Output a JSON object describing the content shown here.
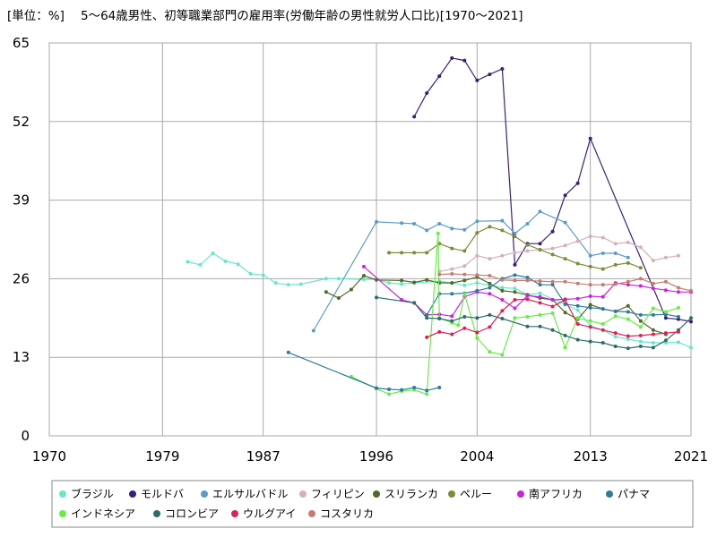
{
  "chart_data": {
    "type": "line",
    "title": "5～64歳男性、初等職業部門の雇用率(労働年齢の男性就労人口比)[1970～2021]",
    "unit_label": "[単位：%]",
    "xlim": [
      1970,
      2021
    ],
    "ylim": [
      0,
      65
    ],
    "x_ticks": [
      1970,
      1979,
      1987,
      1996,
      2004,
      2013,
      2021
    ],
    "y_ticks": [
      0,
      13,
      26,
      39,
      52,
      65
    ],
    "grid": true,
    "legend_position": "bottom",
    "series": [
      {
        "name": "ブラジル",
        "color": "#66e8c8",
        "points": [
          [
            1981,
            28.8
          ],
          [
            1982,
            28.3
          ],
          [
            1983,
            30.2
          ],
          [
            1984,
            28.9
          ],
          [
            1985,
            28.4
          ],
          [
            1986,
            26.8
          ],
          [
            1987,
            26.6
          ],
          [
            1988,
            25.3
          ],
          [
            1989,
            25.0
          ],
          [
            1990,
            25.1
          ],
          [
            1992,
            26.0
          ],
          [
            1993,
            26.0
          ],
          [
            1995,
            25.9
          ],
          [
            1996,
            25.9
          ],
          [
            1997,
            25.3
          ],
          [
            1998,
            25.1
          ],
          [
            1999,
            25.3
          ],
          [
            2001,
            25.6
          ],
          [
            2002,
            25.3
          ],
          [
            2003,
            24.9
          ],
          [
            2004,
            25.3
          ],
          [
            2005,
            24.9
          ],
          [
            2006,
            24.5
          ],
          [
            2007,
            24.4
          ],
          [
            2008,
            23.4
          ],
          [
            2009,
            23.6
          ],
          [
            2011,
            21.7
          ],
          [
            2012,
            20.8
          ],
          [
            2013,
            18.2
          ],
          [
            2014,
            17.5
          ],
          [
            2015,
            16.4
          ],
          [
            2016,
            16.0
          ],
          [
            2017,
            15.6
          ],
          [
            2018,
            15.4
          ],
          [
            2019,
            15.4
          ],
          [
            2020,
            15.5
          ],
          [
            2021,
            14.6
          ]
        ]
      },
      {
        "name": "モルドバ",
        "color": "#3a1f7a",
        "points": [
          [
            1999,
            52.8
          ],
          [
            2000,
            56.7
          ],
          [
            2001,
            59.5
          ],
          [
            2002,
            62.5
          ],
          [
            2003,
            62.1
          ],
          [
            2004,
            58.8
          ],
          [
            2005,
            59.8
          ],
          [
            2006,
            60.7
          ],
          [
            2007,
            28.3
          ],
          [
            2008,
            31.8
          ],
          [
            2009,
            31.8
          ],
          [
            2010,
            33.8
          ],
          [
            2011,
            39.8
          ],
          [
            2012,
            41.8
          ],
          [
            2013,
            49.2
          ],
          [
            2019,
            19.5
          ],
          [
            2020,
            19.3
          ],
          [
            2021,
            18.9
          ]
        ]
      },
      {
        "name": "エルサルバドル",
        "color": "#5b9bc8",
        "points": [
          [
            1991,
            17.4
          ],
          [
            1996,
            35.4
          ],
          [
            1998,
            35.2
          ],
          [
            1999,
            35.1
          ],
          [
            2000,
            34.0
          ],
          [
            2001,
            35.1
          ],
          [
            2002,
            34.3
          ],
          [
            2003,
            34.1
          ],
          [
            2004,
            35.5
          ],
          [
            2006,
            35.6
          ],
          [
            2007,
            33.5
          ],
          [
            2008,
            35.1
          ],
          [
            2009,
            37.1
          ],
          [
            2011,
            35.3
          ],
          [
            2013,
            29.8
          ],
          [
            2014,
            30.2
          ],
          [
            2015,
            30.2
          ],
          [
            2016,
            29.5
          ]
        ]
      },
      {
        "name": "フィリピン",
        "color": "#d4b0be",
        "points": [
          [
            2001,
            27.2
          ],
          [
            2002,
            27.6
          ],
          [
            2003,
            28.1
          ],
          [
            2004,
            29.8
          ],
          [
            2005,
            29.3
          ],
          [
            2006,
            29.8
          ],
          [
            2007,
            30.3
          ],
          [
            2008,
            30.6
          ],
          [
            2009,
            30.8
          ],
          [
            2010,
            31.0
          ],
          [
            2011,
            31.5
          ],
          [
            2012,
            32.2
          ],
          [
            2013,
            33.0
          ],
          [
            2014,
            32.8
          ],
          [
            2015,
            31.8
          ],
          [
            2016,
            32.0
          ],
          [
            2017,
            31.2
          ],
          [
            2018,
            29.0
          ],
          [
            2019,
            29.5
          ],
          [
            2020,
            29.8
          ]
        ]
      },
      {
        "name": "スリランカ",
        "color": "#4f6b28",
        "points": [
          [
            1992,
            23.8
          ],
          [
            1993,
            22.8
          ],
          [
            1994,
            24.2
          ],
          [
            1995,
            26.5
          ],
          [
            1996,
            25.8
          ],
          [
            1998,
            25.7
          ],
          [
            1999,
            25.4
          ],
          [
            2000,
            25.8
          ],
          [
            2001,
            25.3
          ],
          [
            2002,
            25.3
          ],
          [
            2003,
            25.7
          ],
          [
            2004,
            26.3
          ],
          [
            2005,
            25.2
          ],
          [
            2006,
            24.0
          ],
          [
            2007,
            23.8
          ],
          [
            2008,
            23.3
          ],
          [
            2009,
            22.8
          ],
          [
            2010,
            22.5
          ],
          [
            2011,
            20.4
          ],
          [
            2012,
            19.3
          ],
          [
            2013,
            21.7
          ],
          [
            2014,
            21.0
          ],
          [
            2015,
            20.6
          ],
          [
            2016,
            21.5
          ],
          [
            2017,
            19.0
          ],
          [
            2018,
            17.5
          ],
          [
            2019,
            16.8
          ]
        ]
      },
      {
        "name": "ペルー",
        "color": "#7d8b35",
        "points": [
          [
            1997,
            30.3
          ],
          [
            1998,
            30.3
          ],
          [
            1999,
            30.3
          ],
          [
            2000,
            30.3
          ],
          [
            2001,
            31.8
          ],
          [
            2002,
            31.0
          ],
          [
            2003,
            30.6
          ],
          [
            2004,
            33.6
          ],
          [
            2005,
            34.6
          ],
          [
            2006,
            34.0
          ],
          [
            2007,
            33.0
          ],
          [
            2008,
            31.6
          ],
          [
            2009,
            30.8
          ],
          [
            2010,
            30.0
          ],
          [
            2011,
            29.3
          ],
          [
            2012,
            28.5
          ],
          [
            2013,
            28.0
          ],
          [
            2014,
            27.6
          ],
          [
            2015,
            28.3
          ],
          [
            2016,
            28.6
          ],
          [
            2017,
            27.8
          ]
        ]
      },
      {
        "name": "南アフリカ",
        "color": "#cc22dd",
        "points": [
          [
            1995,
            28.0
          ],
          [
            1998,
            22.5
          ],
          [
            1999,
            22.0
          ],
          [
            2000,
            20.0
          ],
          [
            2001,
            20.1
          ],
          [
            2002,
            19.8
          ],
          [
            2003,
            23.0
          ],
          [
            2004,
            23.8
          ],
          [
            2005,
            23.5
          ],
          [
            2006,
            22.5
          ],
          [
            2007,
            21.1
          ],
          [
            2008,
            23.2
          ],
          [
            2009,
            23.0
          ],
          [
            2010,
            22.5
          ],
          [
            2011,
            22.6
          ],
          [
            2012,
            22.7
          ],
          [
            2013,
            23.1
          ],
          [
            2014,
            23.0
          ],
          [
            2015,
            25.3
          ],
          [
            2016,
            25.0
          ],
          [
            2017,
            24.8
          ],
          [
            2018,
            24.4
          ],
          [
            2019,
            24.1
          ],
          [
            2020,
            23.8
          ],
          [
            2021,
            23.8
          ]
        ]
      },
      {
        "name": "パナマ",
        "color": "#2f7a9e",
        "points": [
          [
            2000,
            20.0
          ],
          [
            2001,
            23.5
          ],
          [
            2002,
            23.5
          ],
          [
            2003,
            23.6
          ],
          [
            2004,
            24.0
          ],
          [
            2005,
            24.5
          ],
          [
            2006,
            26.0
          ],
          [
            2007,
            26.6
          ],
          [
            2008,
            26.2
          ],
          [
            2009,
            25.0
          ],
          [
            2010,
            25.0
          ],
          [
            2011,
            21.8
          ],
          [
            2012,
            21.5
          ],
          [
            2013,
            21.2
          ],
          [
            2014,
            21.0
          ],
          [
            2015,
            20.6
          ],
          [
            2016,
            20.5
          ],
          [
            2017,
            20.0
          ],
          [
            2018,
            20.0
          ],
          [
            2019,
            20.1
          ],
          [
            2020,
            19.7
          ]
        ]
      },
      {
        "name": "インドネシア",
        "color": "#66ee44",
        "points": [
          [
            1994,
            9.8
          ],
          [
            1996,
            7.8
          ],
          [
            1997,
            6.9
          ],
          [
            1998,
            7.4
          ],
          [
            1999,
            7.6
          ],
          [
            2000,
            6.9
          ],
          [
            2000.9,
            33.5
          ],
          [
            2001,
            19.5
          ],
          [
            2002,
            18.7
          ],
          [
            2002.5,
            18.3
          ],
          [
            2003,
            23.5
          ],
          [
            2004,
            16.2
          ],
          [
            2005,
            13.9
          ],
          [
            2006,
            13.4
          ],
          [
            2007,
            19.5
          ],
          [
            2008,
            19.7
          ],
          [
            2009,
            20.0
          ],
          [
            2010,
            20.3
          ],
          [
            2011,
            14.6
          ],
          [
            2012,
            19.5
          ],
          [
            2013,
            19.0
          ],
          [
            2014,
            18.5
          ],
          [
            2015,
            19.8
          ],
          [
            2016,
            19.3
          ],
          [
            2017,
            18.0
          ],
          [
            2018,
            21.1
          ],
          [
            2019,
            20.5
          ],
          [
            2020,
            21.2
          ]
        ]
      },
      {
        "name": "コロンビア",
        "color": "#2a6d6a",
        "points": [
          [
            1996,
            22.9
          ],
          [
            1999,
            22.0
          ],
          [
            2000,
            19.5
          ],
          [
            2001,
            19.4
          ],
          [
            2002,
            19.0
          ],
          [
            2003,
            19.7
          ],
          [
            2004,
            19.5
          ],
          [
            2005,
            20.0
          ],
          [
            2006,
            19.4
          ],
          [
            2008,
            18.1
          ],
          [
            2009,
            18.1
          ],
          [
            2010,
            17.5
          ],
          [
            2011,
            16.6
          ],
          [
            2012,
            15.9
          ],
          [
            2013,
            15.6
          ],
          [
            2014,
            15.4
          ],
          [
            2015,
            14.8
          ],
          [
            2016,
            14.5
          ],
          [
            2017,
            14.8
          ],
          [
            2018,
            14.6
          ],
          [
            2019,
            15.8
          ],
          [
            2020,
            17.5
          ],
          [
            2021,
            19.5
          ]
        ]
      },
      {
        "name": "ウルグアイ",
        "color": "#dd2255",
        "points": [
          [
            2000,
            16.3
          ],
          [
            2001,
            17.2
          ],
          [
            2002,
            16.8
          ],
          [
            2003,
            17.8
          ],
          [
            2004,
            17.1
          ],
          [
            2005,
            18.0
          ],
          [
            2006,
            20.7
          ],
          [
            2007,
            22.5
          ],
          [
            2008,
            22.6
          ],
          [
            2009,
            22.0
          ],
          [
            2010,
            21.4
          ],
          [
            2011,
            22.5
          ],
          [
            2012,
            18.5
          ],
          [
            2013,
            18.0
          ],
          [
            2014,
            17.5
          ],
          [
            2015,
            17.0
          ],
          [
            2016,
            16.5
          ],
          [
            2017,
            16.6
          ],
          [
            2018,
            16.8
          ],
          [
            2019,
            17.0
          ],
          [
            2020,
            17.2
          ]
        ]
      },
      {
        "name": "コスタリカ",
        "color": "#c97a70",
        "points": [
          [
            2001,
            26.7
          ],
          [
            2002,
            26.8
          ],
          [
            2003,
            26.7
          ],
          [
            2004,
            26.6
          ],
          [
            2005,
            26.5
          ],
          [
            2006,
            25.8
          ],
          [
            2007,
            25.7
          ],
          [
            2008,
            25.7
          ],
          [
            2009,
            25.6
          ],
          [
            2010,
            25.5
          ],
          [
            2011,
            25.5
          ],
          [
            2012,
            25.2
          ],
          [
            2013,
            25.0
          ],
          [
            2014,
            25.0
          ],
          [
            2015,
            25.1
          ],
          [
            2016,
            25.5
          ],
          [
            2017,
            26.0
          ],
          [
            2018,
            25.2
          ],
          [
            2019,
            25.5
          ],
          [
            2020,
            24.5
          ],
          [
            2021,
            24.0
          ]
        ]
      }
    ]
  },
  "moldova_extra": [
    [
      2013,
      49.2
    ],
    [
      2019,
      19.5
    ]
  ],
  "colombia_extra": [
    [
      1989,
      13.8
    ],
    [
      1996,
      7.9
    ],
    [
      1997,
      7.7
    ],
    [
      1998,
      7.6
    ],
    [
      1999,
      8.0
    ],
    [
      2000,
      7.5
    ],
    [
      2001,
      8.0
    ]
  ]
}
